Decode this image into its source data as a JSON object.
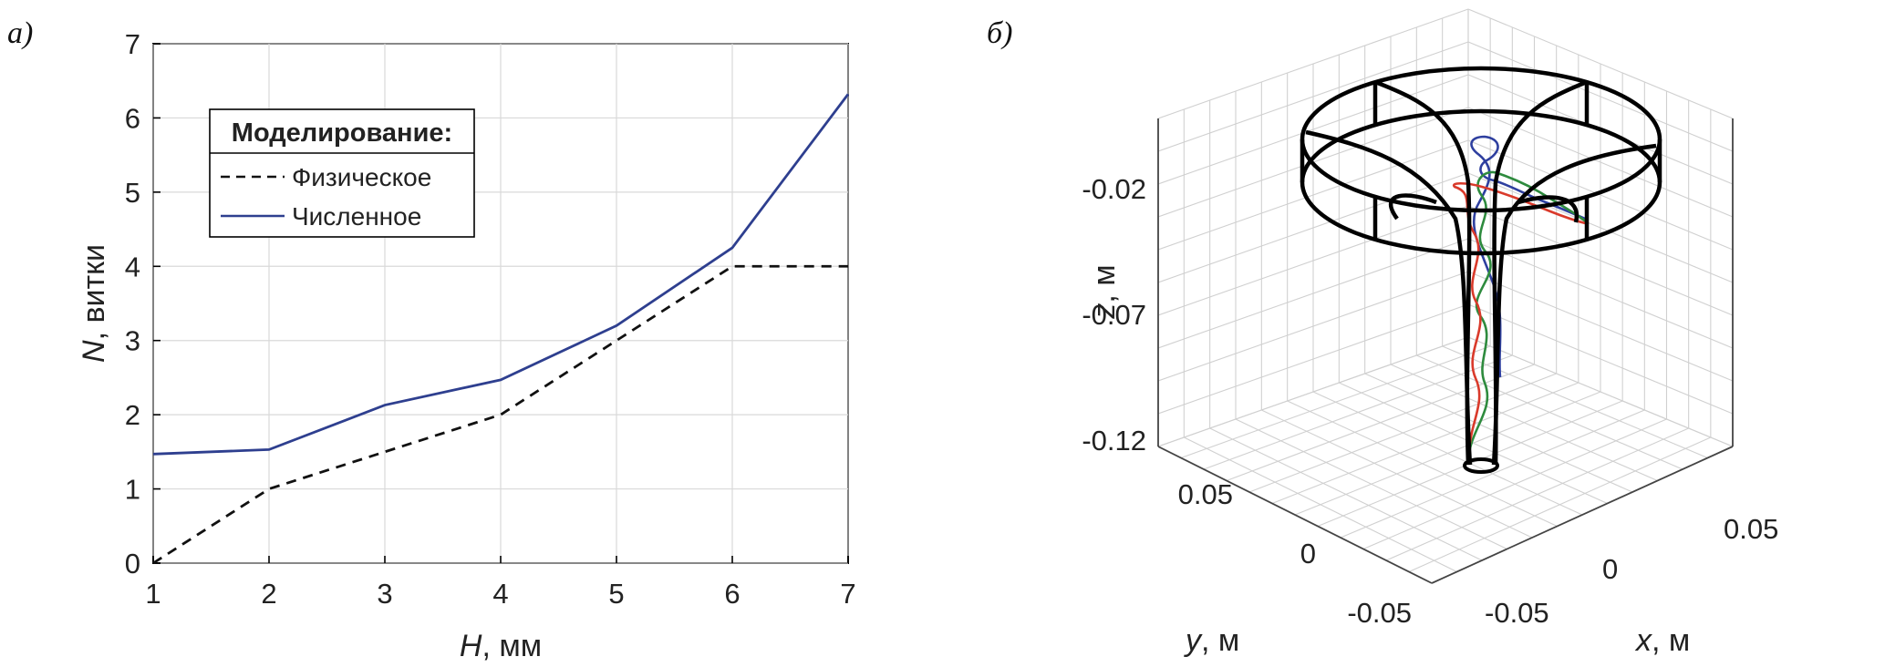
{
  "panel_a": {
    "label": "а)",
    "chart_data": {
      "type": "line",
      "xlabel_var": "H",
      "xlabel_unit": ", мм",
      "ylabel_var": "N",
      "ylabel_unit": ", витки",
      "xlim": [
        1,
        7
      ],
      "ylim": [
        0,
        7
      ],
      "xticks": [
        1,
        2,
        3,
        4,
        5,
        6,
        7
      ],
      "yticks": [
        0,
        1,
        2,
        3,
        4,
        5,
        6,
        7
      ],
      "grid": true,
      "legend": {
        "title": "Моделирование:",
        "placement": "upper-left"
      },
      "series": [
        {
          "name": "Физическое",
          "style": "dashed",
          "color": "#111111",
          "x": [
            1,
            2,
            3,
            4,
            5,
            6,
            7
          ],
          "y": [
            0,
            1,
            1.5,
            2,
            3,
            4,
            4
          ]
        },
        {
          "name": "Численное",
          "style": "solid",
          "color": "#2e3f8f",
          "x": [
            1,
            2,
            3,
            4,
            5,
            6,
            7
          ],
          "y": [
            1.47,
            1.53,
            2.13,
            2.47,
            3.2,
            4.25,
            6.32
          ]
        }
      ]
    }
  },
  "panel_b": {
    "label": "б)",
    "chart_data": {
      "type": "3d-line",
      "zlabel_var": "z",
      "zlabel_unit": ", м",
      "xlabel_var": "x",
      "xlabel_unit": ", м",
      "ylabel_var": "y",
      "ylabel_unit": ", м",
      "zticks": [
        "-0.02",
        "-0.07",
        "-0.12"
      ],
      "yticks": [
        "0.05",
        "0",
        "-0.05"
      ],
      "xticks": [
        "-0.05",
        "0",
        "0.05"
      ],
      "grid": true,
      "series_colors": [
        "#2e3f9f",
        "#2e8b3e",
        "#d93a2b"
      ],
      "frame_color": "#000000"
    }
  }
}
